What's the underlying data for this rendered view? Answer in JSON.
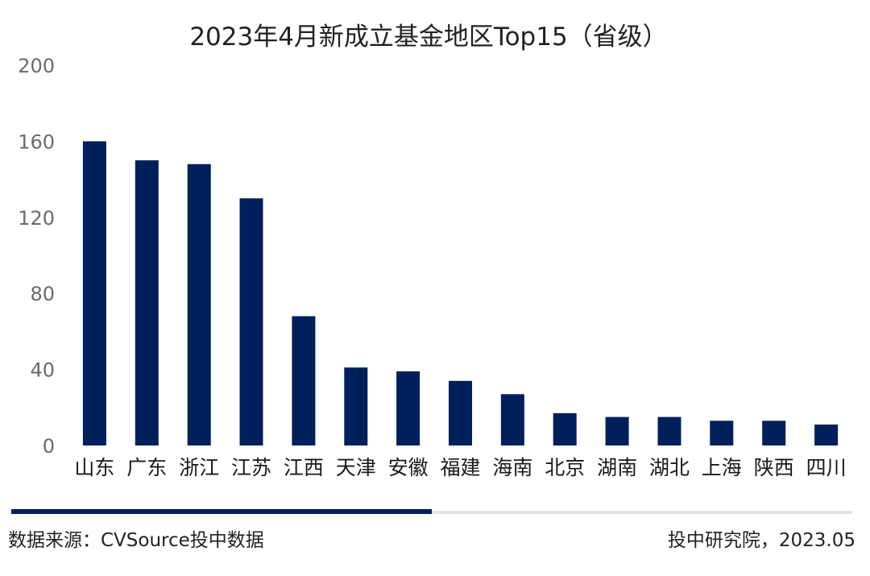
{
  "chart_data": {
    "type": "bar",
    "title": "2023年4月新成立基金地区Top15（省级）",
    "xlabel": "",
    "ylabel": "",
    "ylim": [
      0,
      200
    ],
    "yticks": [
      0,
      40,
      80,
      120,
      160,
      200
    ],
    "categories": [
      "山东",
      "广东",
      "浙江",
      "江苏",
      "江西",
      "天津",
      "安徽",
      "福建",
      "海南",
      "北京",
      "湖南",
      "湖北",
      "上海",
      "陕西",
      "四川"
    ],
    "values": [
      160,
      150,
      148,
      130,
      68,
      41,
      39,
      34,
      27,
      17,
      15,
      15,
      13,
      13,
      11
    ],
    "bar_color": "#00205b",
    "grid": false,
    "legend": "none"
  },
  "footer": {
    "source": "数据来源：CVSource投中数据",
    "credit": "投中研究院，2023.05",
    "accent_color": "#00205b",
    "track_color": "#e2e2e2"
  }
}
